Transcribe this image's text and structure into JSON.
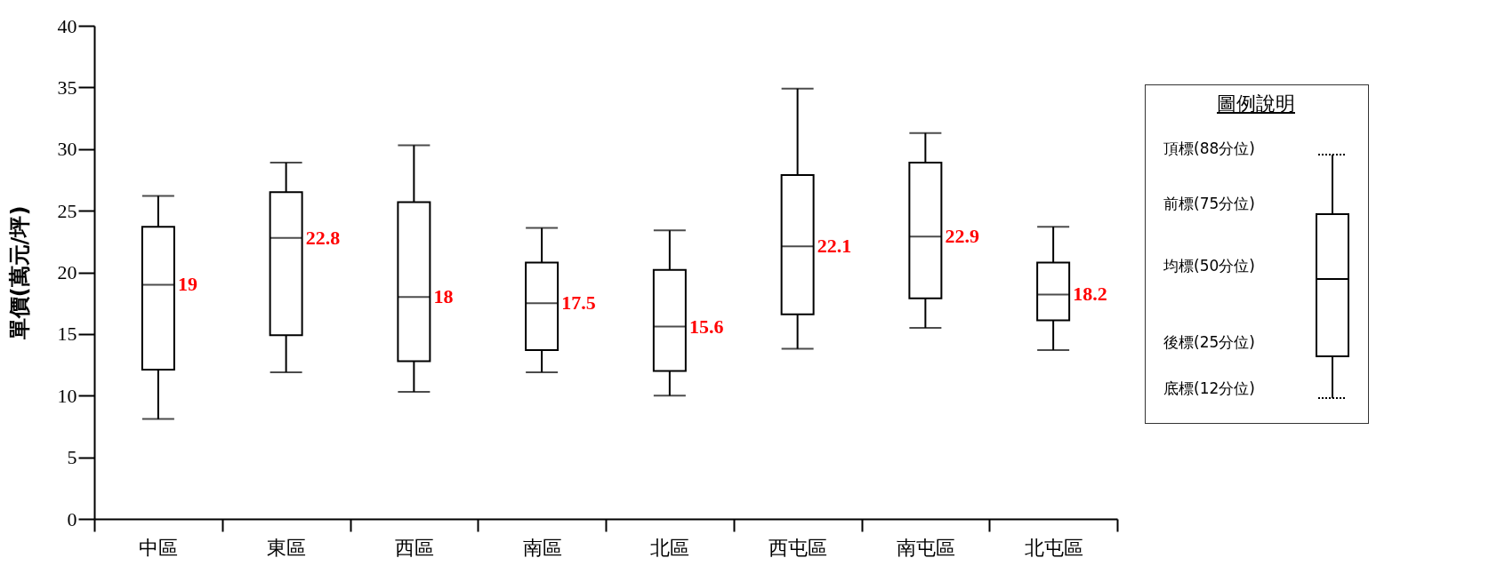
{
  "chart_data": {
    "type": "box",
    "ylabel": "單價(萬元/坪)",
    "categories": [
      "中區",
      "東區",
      "西區",
      "南區",
      "北區",
      "西屯區",
      "南屯區",
      "北屯區"
    ],
    "boxes": [
      {
        "low": 8.1,
        "q1": 12.1,
        "median": 19,
        "q3": 23.7,
        "high": 26.2
      },
      {
        "low": 11.9,
        "q1": 14.9,
        "median": 22.8,
        "q3": 26.5,
        "high": 28.9
      },
      {
        "low": 10.3,
        "q1": 12.8,
        "median": 18,
        "q3": 25.7,
        "high": 30.3
      },
      {
        "low": 11.9,
        "q1": 13.7,
        "median": 17.5,
        "q3": 20.8,
        "high": 23.6
      },
      {
        "low": 10.0,
        "q1": 12.0,
        "median": 15.6,
        "q3": 20.2,
        "high": 23.4
      },
      {
        "low": 13.8,
        "q1": 16.6,
        "median": 22.1,
        "q3": 27.9,
        "high": 34.9
      },
      {
        "low": 15.5,
        "q1": 17.9,
        "median": 22.9,
        "q3": 28.9,
        "high": 31.3
      },
      {
        "low": 13.7,
        "q1": 16.1,
        "median": 18.2,
        "q3": 20.8,
        "high": 23.7
      }
    ],
    "color": "#000000",
    "value_labels": [
      "19",
      "22.8",
      "18",
      "17.5",
      "15.6",
      "22.1",
      "22.9",
      "18.2"
    ],
    "ylim": [
      0,
      40
    ],
    "yticks": [
      0,
      5,
      10,
      15,
      20,
      25,
      30,
      35,
      40
    ],
    "grid": false,
    "legend_title": "圖例說明",
    "annotations": [
      "頂標(88分位)",
      "前標(75分位)",
      "均標(50分位)",
      "後標(25分位)",
      "底標(12分位)"
    ]
  }
}
